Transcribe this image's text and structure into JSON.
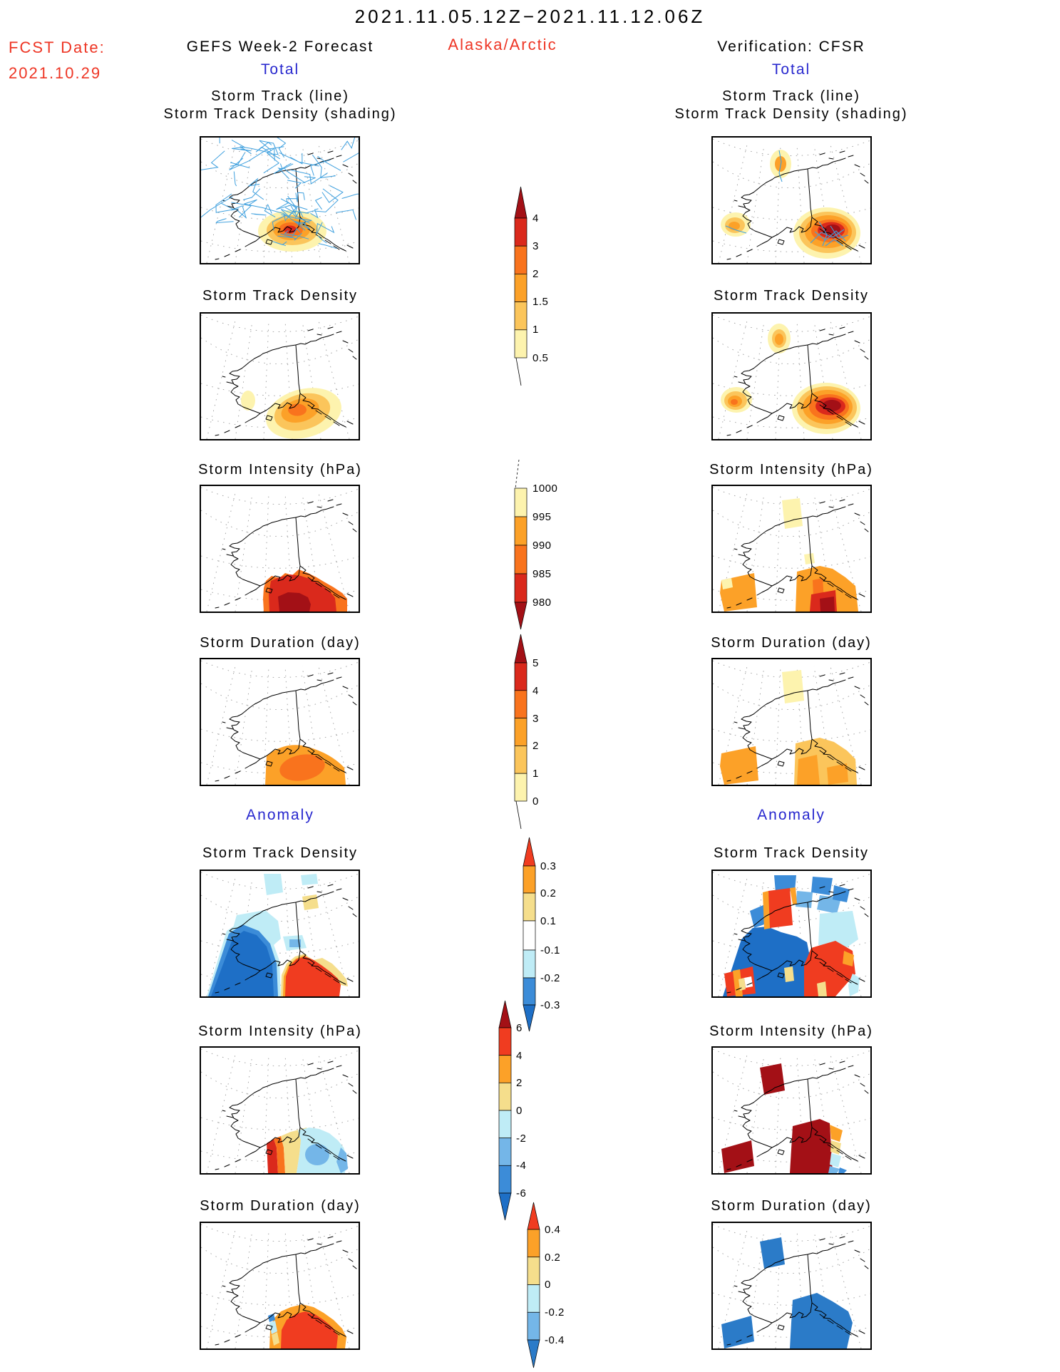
{
  "header": {
    "title": "2021.11.05.12Z−2021.11.12.06Z",
    "fcst_label": "FCST Date:",
    "fcst_date": "2021.10.29",
    "model": "GEFS Week-2 Forecast",
    "region": "Alaska/Arctic",
    "verification": "Verification: CFSR",
    "total_left": "Total",
    "total_right": "Total",
    "anomaly_left": "Anomaly",
    "anomaly_right": "Anomaly"
  },
  "rows": {
    "r1a": "Storm Track (line)",
    "r1b": "Storm Track Density (shading)",
    "r2": "Storm Track Density",
    "r3": "Storm Intensity (hPa)",
    "r4": "Storm Duration (day)",
    "r5": "Storm Track Density",
    "r6": "Storm Intensity (hPa)",
    "r7": "Storm Duration (day)"
  },
  "chart_data": {
    "type": "heatmap",
    "title": "2021.11.05.12Z−2021.11.12.06Z",
    "region": "Alaska/Arctic",
    "forecast_model": "GEFS Week-2 Forecast",
    "forecast_date": "2021.10.29",
    "verification_source": "CFSR",
    "columns": [
      "GEFS Week-2 Forecast Total/Anomaly",
      "Verification CFSR Total/Anomaly"
    ],
    "colorbars": {
      "track_density": {
        "ticks": [
          "4",
          "3",
          "2",
          "1.5",
          "1",
          "0.5"
        ],
        "colors_top_to_bottom": [
          "#A31016",
          "#DA291C",
          "#F9731D",
          "#FCA128",
          "#FBC55B",
          "#FDF3AE"
        ]
      },
      "intensity_hpa": {
        "ticks": [
          "1000",
          "995",
          "990",
          "985",
          "980"
        ],
        "colors_top_to_bottom": [
          "#FDF3AE",
          "#FCA128",
          "#F9731D",
          "#DA291C",
          "#A31016"
        ]
      },
      "duration_day": {
        "ticks": [
          "5",
          "4",
          "3",
          "2",
          "1",
          "0"
        ],
        "colors_top_to_bottom": [
          "#A31016",
          "#DA291C",
          "#F9731D",
          "#FCA128",
          "#FBC55B",
          "#FDF3AE"
        ]
      },
      "anom_track_density": {
        "ticks": [
          "0.3",
          "0.2",
          "0.1",
          "-0.1",
          "-0.2",
          "-0.3"
        ],
        "colors_top_to_bottom": [
          "#F03C20",
          "#FCA128",
          "#F5DE8C",
          "#FFFFFF",
          "#BFECF6",
          "#3C8CD8",
          "#1E6FC6"
        ]
      },
      "anom_intensity_hpa": {
        "ticks": [
          "6",
          "4",
          "2",
          "0",
          "-2",
          "-4",
          "-6"
        ],
        "colors_top_to_bottom": [
          "#A31016",
          "#F03C20",
          "#FCA128",
          "#F5DE8C",
          "#BFECF6",
          "#74B6E8",
          "#3C8CD8",
          "#1E6FC6"
        ]
      },
      "anom_duration_day": {
        "ticks": [
          "0.4",
          "0.2",
          "0",
          "-0.2",
          "-0.4"
        ],
        "colors_top_to_bottom": [
          "#F03C20",
          "#FCA128",
          "#F5DE8C",
          "#BFECF6",
          "#74B6E8",
          "#2B7BC8"
        ]
      }
    },
    "panels": {
      "fcst_storm_track": "dense blue ensemble storm-track mesh over Bering/Arctic with density shading max in Gulf of Alaska",
      "fcst_track_density": "smooth orange maximum in Gulf of Alaska, weak maximum west coast",
      "fcst_intensity": "red/dark-red minimum-pressure region (~980 hPa) south of Alaska",
      "fcst_duration": "orange 2-4 day duration region Gulf of Alaska",
      "fcst_anom_track_density": "negative (blue) anomaly Bering Sea, positive (red) anomaly Gulf of Alaska",
      "fcst_anom_intensity": "positive (red/orange) strip west, negative (cyan/blue) core east in Gulf",
      "fcst_anom_duration": "positive (red/orange) anomaly Gulf of Alaska, small negative strip near Kodiak",
      "verif_storm_track": "three track clusters: north coast, southwest Bering, strong Gulf of Alaska max",
      "verif_track_density": "dark-red density max Gulf of Alaska, secondary maxima north coast and southwest",
      "verif_intensity": "blocky orange/red intensity region Gulf of Alaska, weak patches north and southwest",
      "verif_duration": "blocky orange duration patches north, southwest and Gulf of Alaska",
      "verif_anom_track_density": "blocky strong negative (blue) fan with embedded positive (red) blocks",
      "verif_anom_intensity": "dark-red positive blocks north, southwest, Gulf; cool fringe southeast",
      "verif_anom_duration": "blue negative blocks north, southwest and Gulf of Alaska"
    }
  }
}
